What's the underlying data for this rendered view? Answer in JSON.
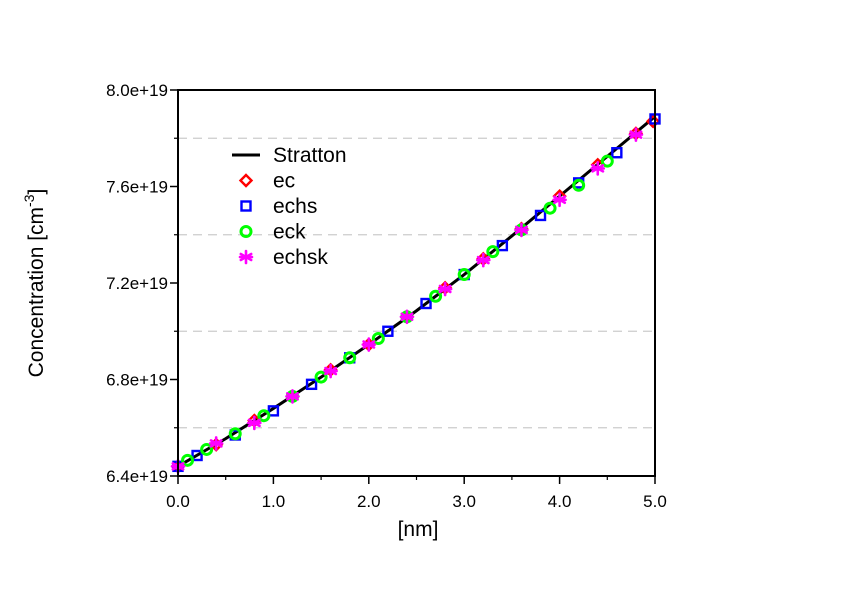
{
  "chart_data": {
    "type": "line",
    "title": "",
    "xlabel": "[nm]",
    "ylabel": "Concentration [cm",
    "ylabel_sup": "-3",
    "ylabel_close": "]",
    "xlim": [
      0.0,
      5.0
    ],
    "ylim": [
      6.4e+19,
      8e+19
    ],
    "x_ticks": [
      0.0,
      1.0,
      2.0,
      3.0,
      4.0,
      5.0
    ],
    "x_tick_labels": [
      "0.0",
      "1.0",
      "2.0",
      "3.0",
      "4.0",
      "5.0"
    ],
    "y_ticks": [
      6.4e+19,
      6.8e+19,
      7.2e+19,
      7.6e+19,
      8e+19
    ],
    "y_tick_labels": [
      "6.4e+19",
      "6.8e+19",
      "7.2e+19",
      "7.6e+19",
      "8.0e+19"
    ],
    "grid": {
      "horizontal_dashed_at": [
        6.6e+19,
        7e+19,
        7.4e+19,
        7.8e+19
      ]
    },
    "legend_position": "upper-left",
    "series": [
      {
        "name": "Stratton",
        "marker": "line",
        "color": "#000000",
        "x": [
          0.0,
          0.5,
          1.0,
          1.5,
          2.0,
          2.5,
          3.0,
          3.5,
          4.0,
          4.5,
          5.0
        ],
        "y": [
          6.44e+19,
          6.555e+19,
          6.68e+19,
          6.81e+19,
          6.945e+19,
          7.085e+19,
          7.235e+19,
          7.395e+19,
          7.56e+19,
          7.725e+19,
          7.89e+19
        ]
      },
      {
        "name": "ec",
        "marker": "diamond",
        "color": "#ff0000",
        "x": [
          0.0,
          0.4,
          0.8,
          1.2,
          1.6,
          2.0,
          2.4,
          2.8,
          3.2,
          3.6,
          4.0,
          4.4,
          4.8,
          4.98
        ],
        "y": [
          6.44e+19,
          6.53e+19,
          6.63e+19,
          6.73e+19,
          6.84e+19,
          6.945e+19,
          7.06e+19,
          7.18e+19,
          7.3e+19,
          7.425e+19,
          7.56e+19,
          7.69e+19,
          7.82e+19,
          7.87e+19
        ]
      },
      {
        "name": "echs",
        "marker": "square",
        "color": "#0000ff",
        "x": [
          0.0,
          0.2,
          0.6,
          1.0,
          1.4,
          1.8,
          2.2,
          2.6,
          3.0,
          3.4,
          3.8,
          4.2,
          4.6,
          5.0
        ],
        "y": [
          6.44e+19,
          6.485e+19,
          6.57e+19,
          6.67e+19,
          6.78e+19,
          6.89e+19,
          7e+19,
          7.115e+19,
          7.235e+19,
          7.355e+19,
          7.48e+19,
          7.615e+19,
          7.74e+19,
          7.88e+19
        ]
      },
      {
        "name": "eck",
        "marker": "circle",
        "color": "#00ff00",
        "x": [
          0.1,
          0.3,
          0.6,
          0.9,
          1.2,
          1.5,
          1.8,
          2.1,
          2.4,
          2.7,
          3.0,
          3.3,
          3.6,
          3.9,
          4.2,
          4.5
        ],
        "y": [
          6.465e+19,
          6.51e+19,
          6.575e+19,
          6.65e+19,
          6.73e+19,
          6.81e+19,
          6.89e+19,
          6.97e+19,
          7.06e+19,
          7.145e+19,
          7.235e+19,
          7.33e+19,
          7.42e+19,
          7.51e+19,
          7.605e+19,
          7.705e+19
        ]
      },
      {
        "name": "echsk",
        "marker": "asterisk",
        "color": "#ff00ff",
        "x": [
          0.0,
          0.4,
          0.8,
          1.2,
          1.6,
          2.0,
          2.4,
          2.8,
          3.2,
          3.6,
          4.0,
          4.4,
          4.8
        ],
        "y": [
          6.44e+19,
          6.535e+19,
          6.62e+19,
          6.73e+19,
          6.835e+19,
          6.945e+19,
          7.06e+19,
          7.175e+19,
          7.295e+19,
          7.42e+19,
          7.545e+19,
          7.675e+19,
          7.815e+19
        ]
      }
    ]
  }
}
